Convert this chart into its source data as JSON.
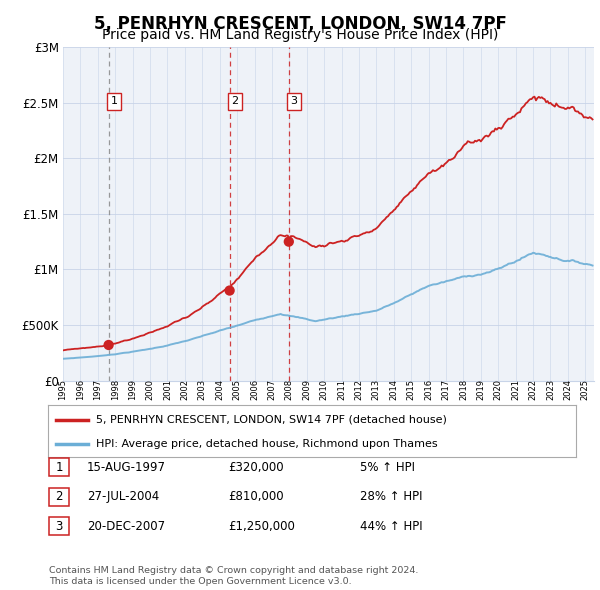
{
  "title": "5, PENRHYN CRESCENT, LONDON, SW14 7PF",
  "subtitle": "Price paid vs. HM Land Registry's House Price Index (HPI)",
  "title_fontsize": 12,
  "subtitle_fontsize": 10,
  "hpi_color": "#6baed6",
  "price_color": "#cc2222",
  "dot_color": "#cc2222",
  "transactions": [
    {
      "label": "1",
      "date_num": 1997.62,
      "price": 320000,
      "vline_color": "#888888",
      "vline_style": "dashed"
    },
    {
      "label": "2",
      "date_num": 2004.57,
      "price": 810000,
      "vline_color": "#cc2222",
      "vline_style": "dashed"
    },
    {
      "label": "3",
      "date_num": 2007.97,
      "price": 1250000,
      "vline_color": "#cc2222",
      "vline_style": "dashed"
    }
  ],
  "legend_price_label": "5, PENRHYN CRESCENT, LONDON, SW14 7PF (detached house)",
  "legend_hpi_label": "HPI: Average price, detached house, Richmond upon Thames",
  "table_rows": [
    {
      "num": "1",
      "date": "15-AUG-1997",
      "price": "£320,000",
      "hpi": "5% ↑ HPI"
    },
    {
      "num": "2",
      "date": "27-JUL-2004",
      "price": "£810,000",
      "hpi": "28% ↑ HPI"
    },
    {
      "num": "3",
      "date": "20-DEC-2007",
      "price": "£1,250,000",
      "hpi": "44% ↑ HPI"
    }
  ],
  "footer": "Contains HM Land Registry data © Crown copyright and database right 2024.\nThis data is licensed under the Open Government Licence v3.0.",
  "xmin": 1995.0,
  "xmax": 2025.5,
  "ymin": 0,
  "ymax": 3000000,
  "plot_bg_color": "#eef2f8",
  "grid_color": "#c8d4e8"
}
